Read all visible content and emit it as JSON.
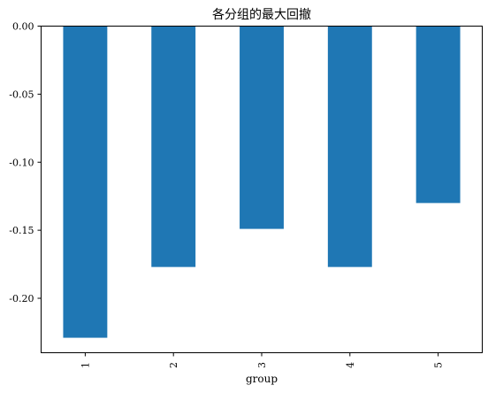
{
  "chart_data": {
    "type": "bar",
    "title": "各分组的最大回撤",
    "xlabel": "group",
    "ylabel": "",
    "categories": [
      "1",
      "2",
      "3",
      "4",
      "5"
    ],
    "values": [
      -0.229,
      -0.177,
      -0.149,
      -0.177,
      -0.13
    ],
    "ylim": [
      -0.24,
      0.0
    ],
    "yticks": [
      0.0,
      -0.05,
      -0.1,
      -0.15,
      -0.2
    ],
    "ytick_labels": [
      "0.00",
      "-0.05",
      "-0.10",
      "-0.15",
      "-0.20"
    ],
    "bar_color": "#1f77b4",
    "grid": false,
    "legend": "none"
  }
}
